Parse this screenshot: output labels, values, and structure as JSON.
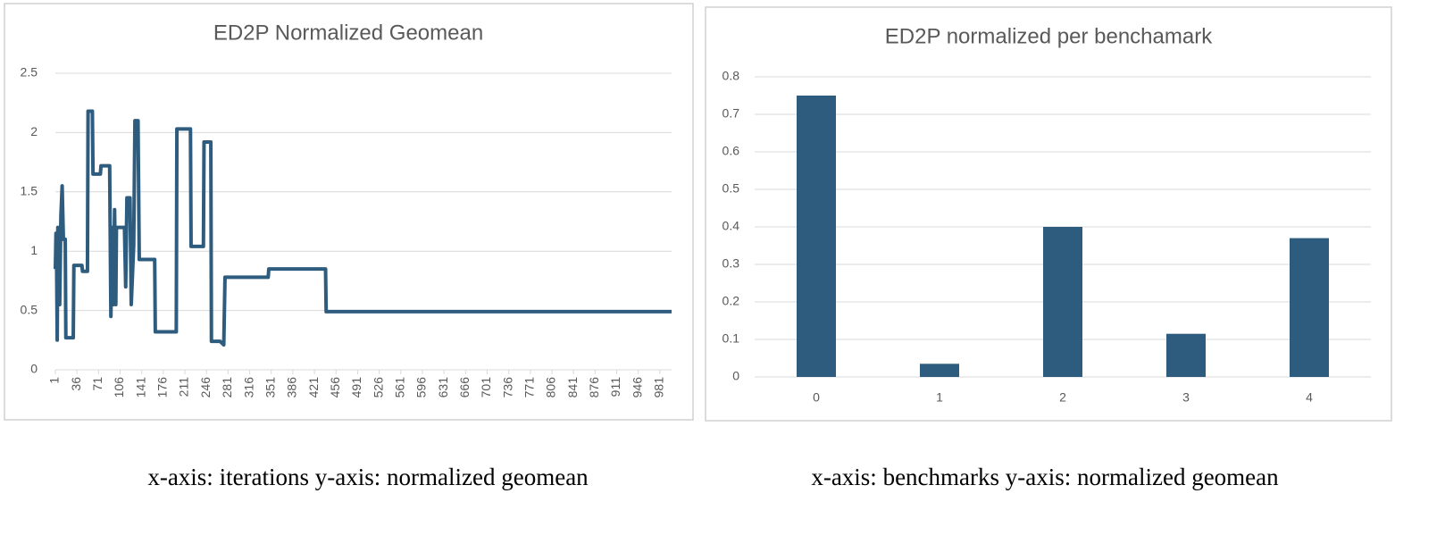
{
  "chart_data": [
    {
      "type": "line",
      "title": "ED2P Normalized Geomean",
      "caption": "x-axis: iterations  y-axis: normalized geomean",
      "color": "#2e5c7e",
      "grid": true,
      "x": [
        1,
        2,
        3,
        4,
        5,
        7,
        8,
        10,
        12,
        14,
        17,
        18,
        30,
        31,
        44,
        45,
        53,
        54,
        61,
        62,
        74,
        75,
        89,
        91,
        93,
        95,
        97,
        99,
        100,
        113,
        115,
        117,
        122,
        124,
        128,
        130,
        135,
        137,
        162,
        163,
        197,
        198,
        220,
        221,
        241,
        242,
        253,
        254,
        268,
        274,
        276,
        346,
        347,
        439,
        440,
        1000
      ],
      "values": [
        0.85,
        1.15,
        0.9,
        0.25,
        1.2,
        1.1,
        0.55,
        1.3,
        1.55,
        1.1,
        1.1,
        0.27,
        0.27,
        0.88,
        0.88,
        0.83,
        0.83,
        2.18,
        2.18,
        1.65,
        1.65,
        1.72,
        1.72,
        0.45,
        1.2,
        0.55,
        1.35,
        0.55,
        1.2,
        1.2,
        0.7,
        1.45,
        1.45,
        0.55,
        1.05,
        2.1,
        2.1,
        0.93,
        0.93,
        0.32,
        0.32,
        2.03,
        2.03,
        1.04,
        1.04,
        1.92,
        1.92,
        0.24,
        0.24,
        0.21,
        0.78,
        0.78,
        0.85,
        0.85,
        0.49,
        0.49
      ],
      "xlim": [
        1,
        1000
      ],
      "xticks": [
        1,
        36,
        71,
        106,
        141,
        176,
        211,
        246,
        281,
        316,
        351,
        386,
        421,
        456,
        491,
        526,
        561,
        596,
        631,
        666,
        701,
        736,
        771,
        806,
        841,
        876,
        911,
        946,
        981
      ],
      "ylim": [
        0,
        2.5
      ],
      "yticks": [
        0,
        0.5,
        1,
        1.5,
        2,
        2.5
      ]
    },
    {
      "type": "bar",
      "title": "ED2P normalized per benchamark",
      "caption": "x-axis: benchmarks  y-axis: normalized geomean",
      "color": "#2e5c7e",
      "grid": true,
      "categories": [
        "0",
        "1",
        "2",
        "3",
        "4"
      ],
      "values": [
        0.75,
        0.035,
        0.4,
        0.115,
        0.37
      ],
      "ylim": [
        0,
        0.8
      ],
      "yticks": [
        0,
        0.1,
        0.2,
        0.3,
        0.4,
        0.5,
        0.6,
        0.7,
        0.8
      ]
    }
  ]
}
